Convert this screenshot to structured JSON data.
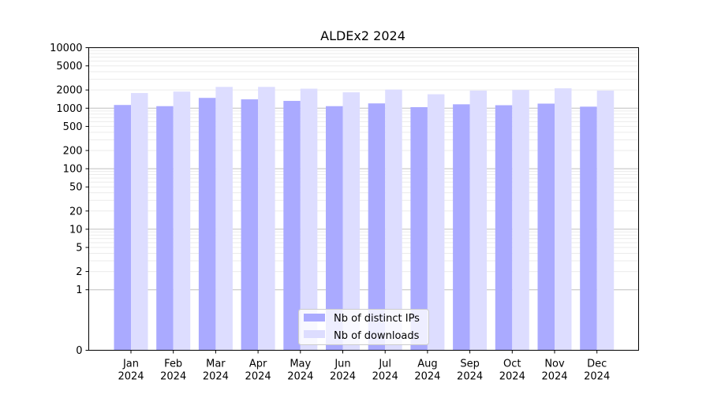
{
  "chart_data": {
    "type": "bar",
    "title": "ALDEx2 2024",
    "xlabel": "",
    "ylabel": "",
    "yscale": "symlog",
    "ylim": [
      0,
      10000
    ],
    "yticks": [
      0,
      1,
      2,
      5,
      10,
      20,
      50,
      100,
      200,
      500,
      1000,
      2000,
      5000,
      10000
    ],
    "categories": [
      "Jan\n2024",
      "Feb\n2024",
      "Mar\n2024",
      "Apr\n2024",
      "May\n2024",
      "Jun\n2024",
      "Jul\n2024",
      "Aug\n2024",
      "Sep\n2024",
      "Oct\n2024",
      "Nov\n2024",
      "Dec\n2024"
    ],
    "category_lines": [
      [
        "Jan",
        "2024"
      ],
      [
        "Feb",
        "2024"
      ],
      [
        "Mar",
        "2024"
      ],
      [
        "Apr",
        "2024"
      ],
      [
        "May",
        "2024"
      ],
      [
        "Jun",
        "2024"
      ],
      [
        "Jul",
        "2024"
      ],
      [
        "Aug",
        "2024"
      ],
      [
        "Sep",
        "2024"
      ],
      [
        "Oct",
        "2024"
      ],
      [
        "Nov",
        "2024"
      ],
      [
        "Dec",
        "2024"
      ]
    ],
    "series": [
      {
        "name": "Nb of distinct IPs",
        "color": "#aaaaff",
        "values": [
          1130,
          1080,
          1480,
          1400,
          1320,
          1080,
          1200,
          1040,
          1160,
          1120,
          1190,
          1060
        ]
      },
      {
        "name": "Nb of downloads",
        "color": "#ddddff",
        "values": [
          1780,
          1880,
          2250,
          2250,
          2100,
          1830,
          2030,
          1700,
          1950,
          2000,
          2130,
          1950
        ]
      }
    ],
    "grid": true,
    "legend_position": "bottom-center"
  }
}
